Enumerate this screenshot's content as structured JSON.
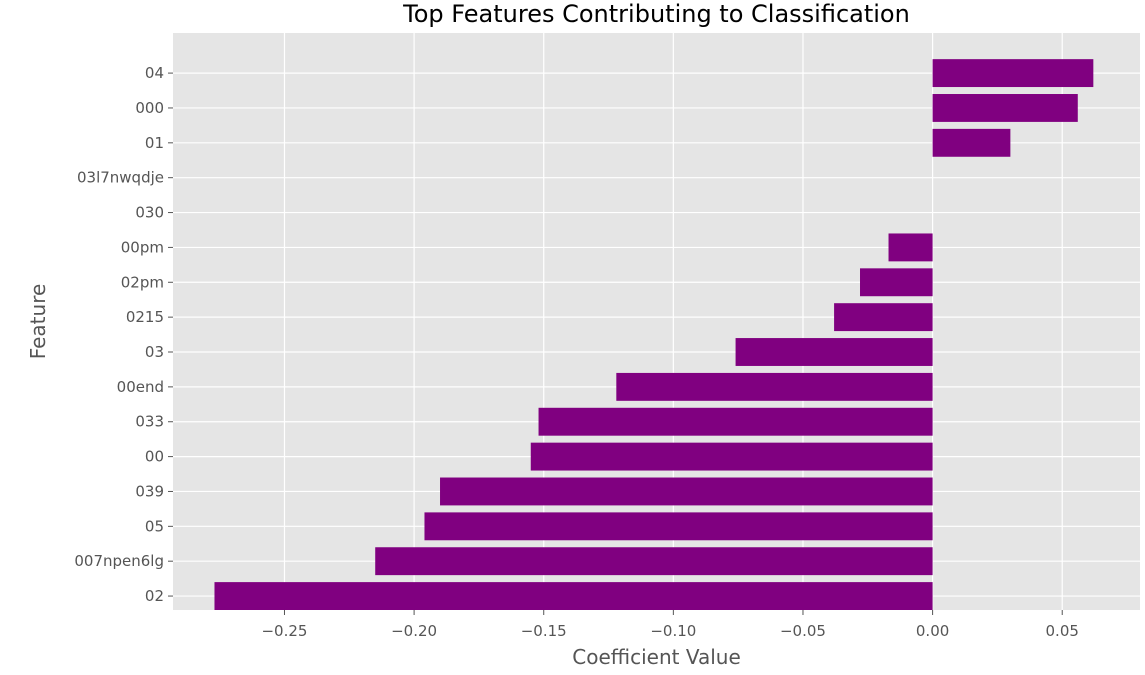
{
  "chart_data": {
    "type": "bar",
    "orientation": "horizontal",
    "title": "Top Features Contributing to Classification",
    "xlabel": "Coefficient Value",
    "ylabel": "Feature",
    "categories": [
      "04",
      "000",
      "01",
      "03l7nwqdje",
      "030",
      "00pm",
      "02pm",
      "0215",
      "03",
      "00end",
      "033",
      "00",
      "039",
      "05",
      "007npen6lg",
      "02"
    ],
    "values": [
      0.062,
      0.056,
      0.03,
      0.0,
      0.0,
      -0.017,
      -0.028,
      -0.038,
      -0.076,
      -0.122,
      -0.152,
      -0.155,
      -0.19,
      -0.196,
      -0.215,
      -0.277
    ],
    "xlim": [
      -0.293,
      0.08
    ],
    "xticks": [
      -0.25,
      -0.2,
      -0.15,
      -0.1,
      -0.05,
      0.0,
      0.05
    ],
    "xtick_labels": [
      "−0.25",
      "−0.20",
      "−0.15",
      "−0.10",
      "−0.05",
      "0.00",
      "0.05"
    ],
    "grid": true,
    "colors": {
      "bar": "#800080",
      "plot_background": "#e5e5e5",
      "grid": "#ffffff"
    }
  }
}
